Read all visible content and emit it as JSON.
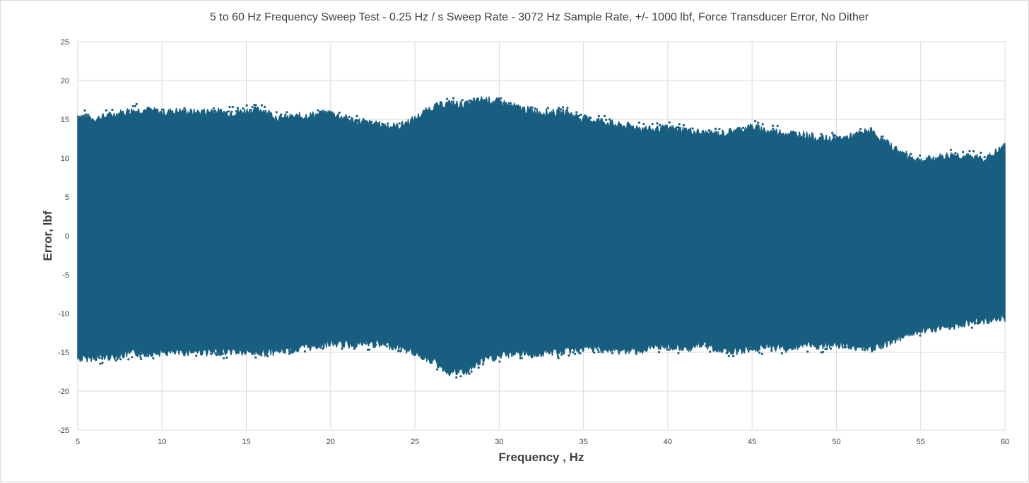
{
  "chart_data": {
    "type": "scatter",
    "title": "5 to 60 Hz Frequency Sweep Test - 0.25 Hz / s Sweep Rate  - 3072 Hz Sample Rate, +/- 1000 lbf, Force Transducer Error, No Dither",
    "xlabel": "Frequency , Hz",
    "ylabel": "Error, lbf",
    "xlim": [
      5,
      60
    ],
    "ylim": [
      -25,
      25
    ],
    "x_ticks": [
      "5",
      "10",
      "15",
      "20",
      "25",
      "30",
      "35",
      "40",
      "45",
      "50",
      "55",
      "60"
    ],
    "y_ticks": [
      "25",
      "20",
      "15",
      "10",
      "5",
      "0",
      "-5",
      "-10",
      "-15",
      "-20",
      "-25"
    ],
    "grid": true,
    "legend": "none",
    "series_color": "#175e80",
    "series": [
      {
        "x": [
          5,
          6,
          7,
          8,
          9,
          10,
          11,
          12,
          13,
          14,
          15,
          16,
          17,
          18,
          19,
          20,
          21,
          22,
          23,
          24,
          25,
          26,
          27,
          28,
          29,
          30,
          31,
          32,
          33,
          34,
          35,
          36,
          37,
          38,
          39,
          40,
          41,
          42,
          43,
          44,
          45,
          46,
          47,
          48,
          49,
          50,
          51,
          52,
          53,
          54,
          55,
          56,
          57,
          58,
          59,
          60
        ],
        "upper_envelope": [
          15.5,
          15.0,
          15.5,
          16.0,
          16.2,
          15.8,
          16.0,
          15.8,
          16.0,
          15.8,
          16.0,
          16.2,
          15.0,
          15.3,
          15.5,
          15.8,
          15.0,
          14.5,
          14.2,
          14.0,
          15.0,
          16.5,
          17.0,
          16.8,
          17.5,
          17.2,
          16.5,
          16.0,
          15.8,
          15.8,
          15.0,
          14.8,
          14.2,
          14.0,
          13.6,
          13.8,
          13.6,
          13.2,
          13.0,
          13.5,
          14.0,
          13.4,
          13.2,
          13.0,
          12.5,
          12.3,
          12.8,
          13.5,
          11.8,
          10.5,
          9.6,
          10.0,
          10.4,
          10.0,
          10.0,
          11.5
        ],
        "lower_envelope": [
          -15.8,
          -15.6,
          -15.5,
          -15.2,
          -15.0,
          -15.0,
          -15.0,
          -14.8,
          -15.0,
          -14.8,
          -15.0,
          -15.0,
          -14.8,
          -14.5,
          -14.2,
          -13.8,
          -14.0,
          -13.8,
          -14.0,
          -14.2,
          -15.0,
          -16.0,
          -17.5,
          -17.5,
          -16.0,
          -15.5,
          -15.0,
          -15.2,
          -15.0,
          -14.8,
          -14.5,
          -14.5,
          -14.8,
          -14.8,
          -14.5,
          -14.2,
          -14.5,
          -14.0,
          -14.5,
          -14.8,
          -14.5,
          -14.2,
          -14.5,
          -14.0,
          -14.2,
          -14.0,
          -14.2,
          -14.5,
          -13.8,
          -12.8,
          -12.0,
          -11.8,
          -11.5,
          -11.0,
          -10.8,
          -10.5
        ]
      }
    ]
  }
}
